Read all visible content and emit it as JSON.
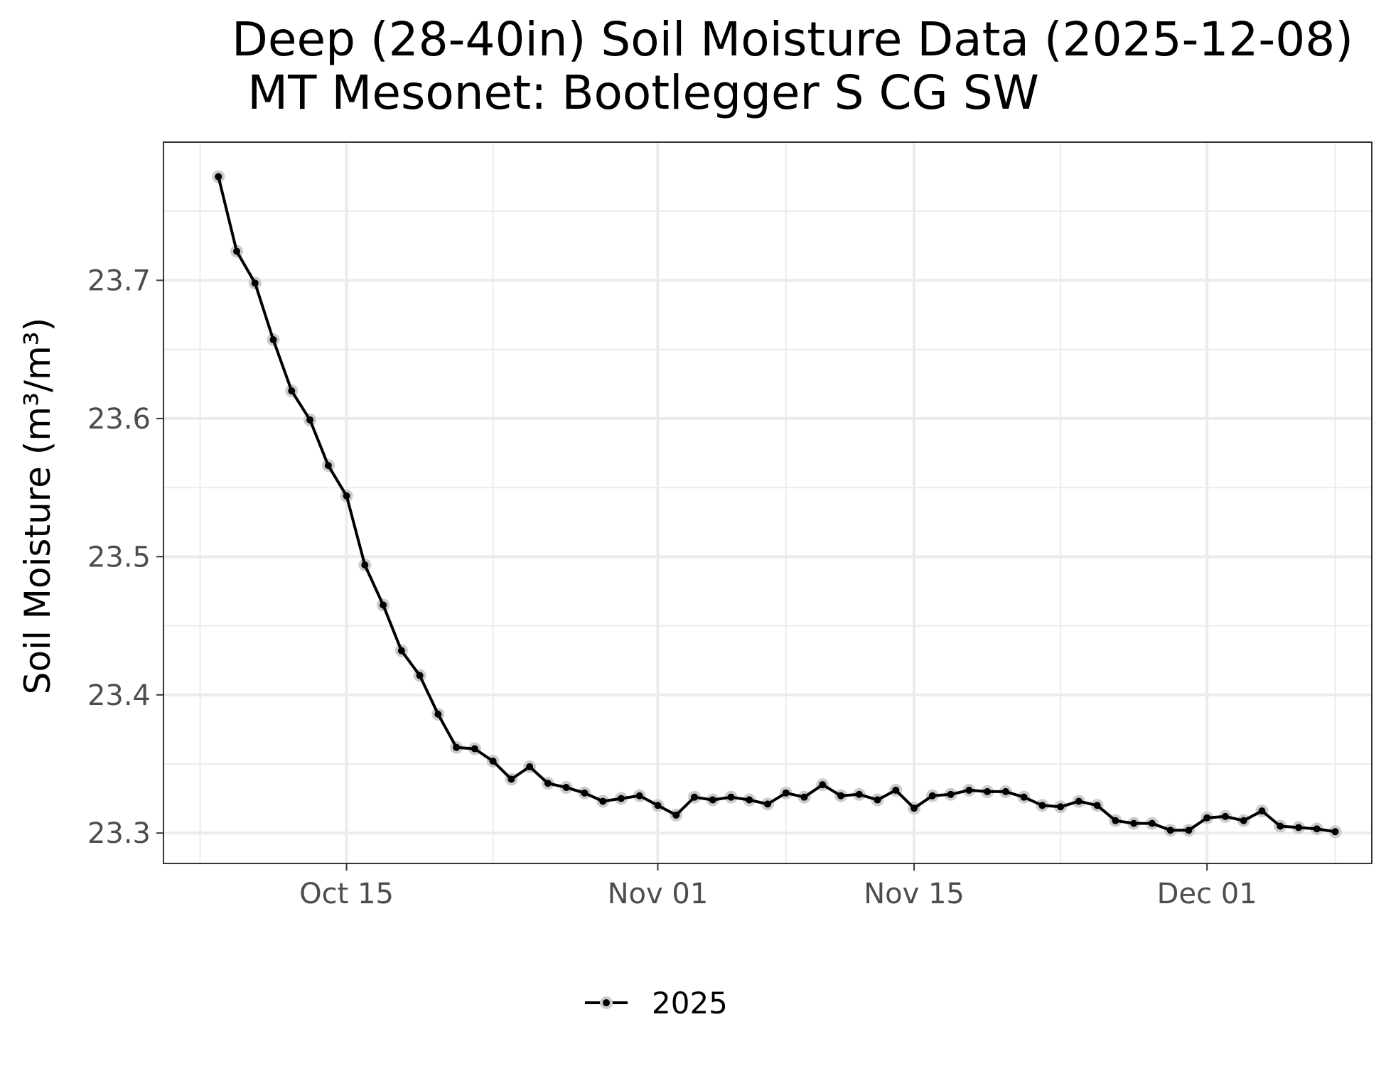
{
  "chart_data": {
    "type": "line",
    "title": "Deep (28-40in) Soil Moisture Data (2025-12-08)",
    "subtitle": "MT Mesonet: Bootlegger S CG SW",
    "ylabel": "Soil Moisture (m³/m³)",
    "xlabel": "",
    "xlim": [
      "2025-10-05",
      "2025-12-10"
    ],
    "ylim": [
      23.278,
      23.8
    ],
    "x_ticks": [
      {
        "date": "2025-10-15",
        "label": "Oct 15"
      },
      {
        "date": "2025-11-01",
        "label": "Nov 01"
      },
      {
        "date": "2025-11-15",
        "label": "Nov 15"
      },
      {
        "date": "2025-12-01",
        "label": "Dec 01"
      }
    ],
    "x_minor_ticks": [
      "2025-10-07",
      "2025-10-23",
      "2025-11-08",
      "2025-11-23",
      "2025-12-08"
    ],
    "y_ticks": [
      {
        "value": 23.3,
        "label": "23.3"
      },
      {
        "value": 23.4,
        "label": "23.4"
      },
      {
        "value": 23.5,
        "label": "23.5"
      },
      {
        "value": 23.6,
        "label": "23.6"
      },
      {
        "value": 23.7,
        "label": "23.7"
      }
    ],
    "y_minor_ticks": [
      23.35,
      23.45,
      23.55,
      23.65,
      23.75
    ],
    "grid": true,
    "legend_position": "bottom",
    "colors": {
      "line": "#000000",
      "halo": "#cccccc",
      "grid": "#ebebeb",
      "panel_border": "#333333"
    },
    "series": [
      {
        "name": "2025",
        "x": [
          "2025-10-08",
          "2025-10-09",
          "2025-10-10",
          "2025-10-11",
          "2025-10-12",
          "2025-10-13",
          "2025-10-14",
          "2025-10-15",
          "2025-10-16",
          "2025-10-17",
          "2025-10-18",
          "2025-10-19",
          "2025-10-20",
          "2025-10-21",
          "2025-10-22",
          "2025-10-23",
          "2025-10-24",
          "2025-10-25",
          "2025-10-26",
          "2025-10-27",
          "2025-10-28",
          "2025-10-29",
          "2025-10-30",
          "2025-10-31",
          "2025-11-01",
          "2025-11-02",
          "2025-11-03",
          "2025-11-04",
          "2025-11-05",
          "2025-11-06",
          "2025-11-07",
          "2025-11-08",
          "2025-11-09",
          "2025-11-10",
          "2025-11-11",
          "2025-11-12",
          "2025-11-13",
          "2025-11-14",
          "2025-11-15",
          "2025-11-16",
          "2025-11-17",
          "2025-11-18",
          "2025-11-19",
          "2025-11-20",
          "2025-11-21",
          "2025-11-22",
          "2025-11-23",
          "2025-11-24",
          "2025-11-25",
          "2025-11-26",
          "2025-11-27",
          "2025-11-28",
          "2025-11-29",
          "2025-11-30",
          "2025-12-01",
          "2025-12-02",
          "2025-12-03",
          "2025-12-04",
          "2025-12-05",
          "2025-12-06",
          "2025-12-07",
          "2025-12-08"
        ],
        "values": [
          23.775,
          23.721,
          23.698,
          23.657,
          23.62,
          23.599,
          23.566,
          23.544,
          23.494,
          23.465,
          23.432,
          23.414,
          23.386,
          23.362,
          23.361,
          23.352,
          23.339,
          23.348,
          23.336,
          23.333,
          23.329,
          23.323,
          23.325,
          23.327,
          23.32,
          23.313,
          23.326,
          23.324,
          23.326,
          23.324,
          23.321,
          23.329,
          23.326,
          23.335,
          23.327,
          23.328,
          23.324,
          23.331,
          23.318,
          23.327,
          23.328,
          23.331,
          23.33,
          23.33,
          23.326,
          23.32,
          23.319,
          23.323,
          23.32,
          23.309,
          23.307,
          23.307,
          23.302,
          23.302,
          23.311,
          23.312,
          23.309,
          23.316,
          23.305,
          23.304,
          23.303,
          23.301
        ]
      }
    ]
  }
}
